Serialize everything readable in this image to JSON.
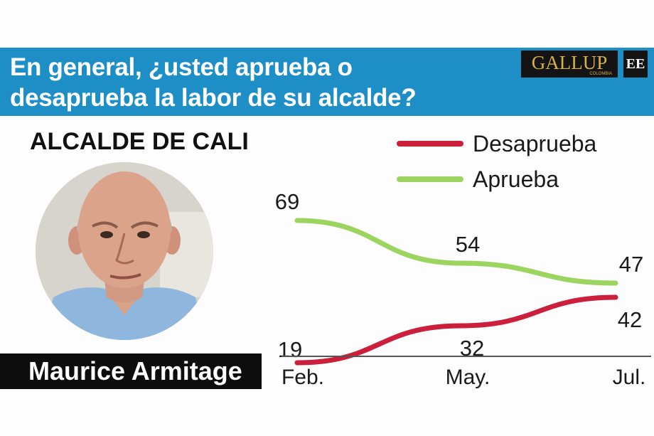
{
  "header": {
    "question_line1": "En general, ¿usted aprueba o",
    "question_line2": "desaprueba la labor de su alcalde?",
    "logo_gallup": "GALLUP",
    "logo_gallup_sub": "COLOMBIA",
    "logo_ee": "EE"
  },
  "subject": {
    "heading": "ALCALDE DE CALI",
    "name": "Maurice Armitage"
  },
  "colors": {
    "banner": "#1e8fc6",
    "desaprueba": "#cc1f3c",
    "aprueba": "#9bd45e"
  },
  "chart_data": {
    "type": "line",
    "categories": [
      "Feb.",
      "May.",
      "Jul."
    ],
    "series": [
      {
        "name": "Desaprueba",
        "values": [
          19,
          32,
          42
        ],
        "color": "#cc1f3c"
      },
      {
        "name": "Aprueba",
        "values": [
          69,
          54,
          47
        ],
        "color": "#9bd45e"
      }
    ],
    "ylim": [
      0,
      100
    ],
    "grid": false,
    "legend_position": "top-right"
  }
}
